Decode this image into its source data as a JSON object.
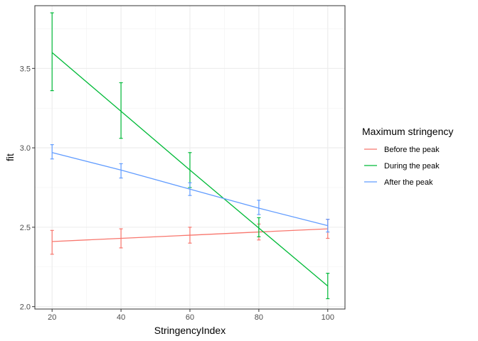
{
  "chart_data": {
    "type": "line",
    "xlabel": "StringencyIndex",
    "ylabel": "fit",
    "xlim": [
      15,
      105
    ],
    "ylim": [
      1.985,
      3.895
    ],
    "x_ticks": [
      20,
      40,
      60,
      80,
      100
    ],
    "x_tick_labels": [
      "20",
      "40",
      "60",
      "80",
      "100"
    ],
    "x_minor": [
      30,
      50,
      70,
      90
    ],
    "y_ticks": [
      2.0,
      2.5,
      3.0,
      3.5
    ],
    "y_tick_labels": [
      "2.0",
      "2.5",
      "3.0",
      "3.5"
    ],
    "y_minor": [
      2.25,
      2.75,
      3.25,
      3.75
    ],
    "grid": true,
    "legend": {
      "title": "Maximum stringency",
      "position": "right"
    },
    "series": [
      {
        "name": "Before the peak",
        "color": "#F8766D",
        "x": [
          20,
          40,
          60,
          80,
          100
        ],
        "y": [
          2.41,
          2.43,
          2.45,
          2.47,
          2.49
        ],
        "lower": [
          2.33,
          2.37,
          2.4,
          2.42,
          2.43
        ],
        "upper": [
          2.48,
          2.49,
          2.5,
          2.52,
          2.55
        ]
      },
      {
        "name": "During the peak",
        "color": "#00BA38",
        "x": [
          20,
          40,
          60,
          100
        ],
        "y": [
          3.6,
          3.23,
          2.86,
          2.13
        ],
        "lower": [
          3.36,
          3.06,
          2.75,
          2.05
        ],
        "upper": [
          3.85,
          3.41,
          2.97,
          2.21
        ],
        "ci_x": [
          20,
          40,
          60,
          80,
          100
        ],
        "ci_lower": [
          3.36,
          3.06,
          2.75,
          2.44,
          2.05
        ],
        "ci_upper": [
          3.85,
          3.41,
          2.97,
          2.56,
          2.21
        ]
      },
      {
        "name": "After the peak",
        "color": "#619CFF",
        "x": [
          20,
          40,
          60,
          80,
          100
        ],
        "y": [
          2.97,
          2.86,
          2.74,
          2.62,
          2.51
        ],
        "lower": [
          2.93,
          2.81,
          2.7,
          2.58,
          2.47
        ],
        "upper": [
          3.02,
          2.9,
          2.78,
          2.67,
          2.55
        ]
      }
    ]
  }
}
